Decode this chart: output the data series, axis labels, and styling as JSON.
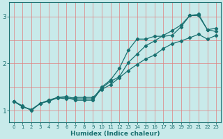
{
  "title": "",
  "xlabel": "Humidex (Indice chaleur)",
  "ylabel": "",
  "background_color": "#c8eaea",
  "grid_color_v": "#e08080",
  "grid_color_h": "#e08080",
  "line_color": "#1a7070",
  "xlim": [
    -0.5,
    23.5
  ],
  "ylim": [
    0.75,
    3.3
  ],
  "yticks": [
    1,
    2,
    3
  ],
  "xticks": [
    0,
    1,
    2,
    3,
    4,
    5,
    6,
    7,
    8,
    9,
    10,
    11,
    12,
    13,
    14,
    15,
    16,
    17,
    18,
    19,
    20,
    21,
    22,
    23
  ],
  "line1_x": [
    0,
    1,
    2,
    3,
    4,
    5,
    6,
    7,
    8,
    9,
    10,
    11,
    12,
    13,
    14,
    15,
    16,
    17,
    18,
    19,
    20,
    21,
    22,
    23
  ],
  "line1_y": [
    1.2,
    1.1,
    1.0,
    1.15,
    1.2,
    1.27,
    1.25,
    1.28,
    1.28,
    1.28,
    1.45,
    1.55,
    1.7,
    1.85,
    1.98,
    2.1,
    2.18,
    2.32,
    2.42,
    2.48,
    2.55,
    2.62,
    2.52,
    2.6
  ],
  "line2_x": [
    0,
    1,
    2,
    3,
    4,
    5,
    6,
    7,
    8,
    9,
    10,
    11,
    12,
    13,
    14,
    15,
    16,
    17,
    18,
    19,
    20,
    21,
    22,
    23
  ],
  "line2_y": [
    1.2,
    1.08,
    1.02,
    1.15,
    1.22,
    1.28,
    1.28,
    1.22,
    1.22,
    1.22,
    1.48,
    1.62,
    1.72,
    2.02,
    2.2,
    2.38,
    2.48,
    2.6,
    2.7,
    2.82,
    3.02,
    3.02,
    2.72,
    2.68
  ],
  "line3_x": [
    0,
    1,
    2,
    3,
    4,
    5,
    6,
    7,
    8,
    9,
    10,
    11,
    12,
    13,
    14,
    15,
    16,
    17,
    18,
    19,
    20,
    21,
    22,
    23
  ],
  "line3_y": [
    1.2,
    1.08,
    1.02,
    1.15,
    1.22,
    1.28,
    1.3,
    1.25,
    1.25,
    1.25,
    1.5,
    1.65,
    1.9,
    2.28,
    2.52,
    2.52,
    2.58,
    2.58,
    2.6,
    2.78,
    3.02,
    3.05,
    2.72,
    2.75
  ]
}
